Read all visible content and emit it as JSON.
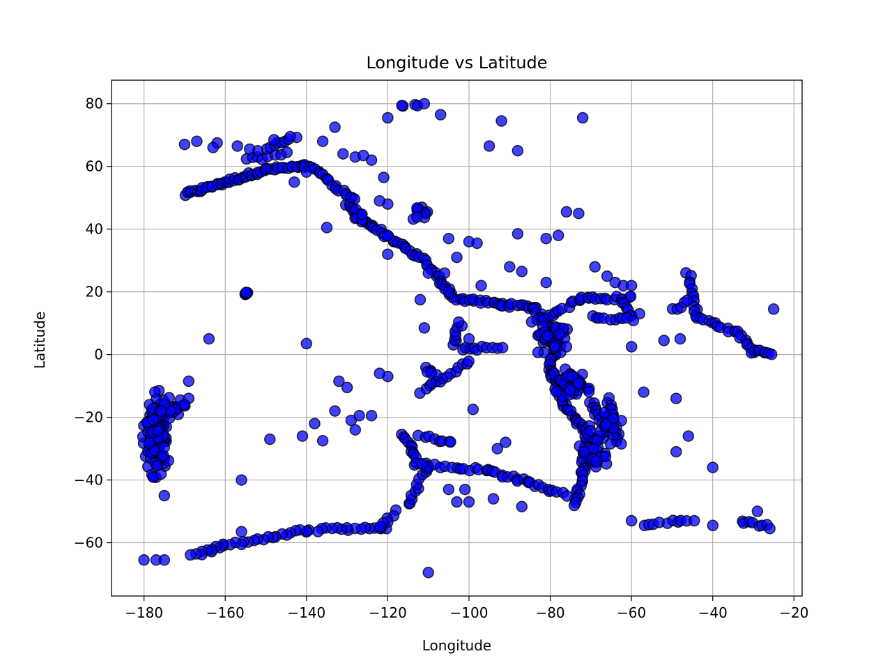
{
  "chart_data": {
    "type": "scatter",
    "title": "Longitude vs Latitude",
    "xlabel": "Longitude",
    "ylabel": "Latitude",
    "xlim": [
      -188,
      -18
    ],
    "ylim": [
      -77,
      87.5
    ],
    "xticks": [
      -180,
      -160,
      -140,
      -120,
      -100,
      -80,
      -60,
      -40,
      -20
    ],
    "yticks": [
      -60,
      -40,
      -20,
      0,
      20,
      40,
      60,
      80
    ],
    "xtick_labels": [
      "−180",
      "−160",
      "−140",
      "−120",
      "−100",
      "−80",
      "−60",
      "−40",
      "−20"
    ],
    "ytick_labels": [
      "−60",
      "−40",
      "−20",
      "0",
      "20",
      "40",
      "60",
      "80"
    ],
    "grid": true,
    "marker_color": "#0000ff",
    "marker_edge_color": "#000000",
    "marker_alpha": 0.75,
    "segments": [
      {
        "from": [
          -170,
          51
        ],
        "to": [
          -160,
          55
        ],
        "n": 18
      },
      {
        "from": [
          -160,
          55
        ],
        "to": [
          -150,
          59
        ],
        "n": 18
      },
      {
        "from": [
          -150,
          59
        ],
        "to": [
          -140,
          60
        ],
        "n": 16
      },
      {
        "from": [
          -140,
          60
        ],
        "to": [
          -136,
          58
        ],
        "n": 6
      },
      {
        "from": [
          -155,
          62
        ],
        "to": [
          -145,
          64
        ],
        "n": 8
      },
      {
        "from": [
          -150,
          66
        ],
        "to": [
          -143,
          69
        ],
        "n": 8
      },
      {
        "from": [
          -136,
          57
        ],
        "to": [
          -128,
          49
        ],
        "n": 14
      },
      {
        "from": [
          -130,
          48
        ],
        "to": [
          -124,
          41
        ],
        "n": 12
      },
      {
        "from": [
          -124,
          41
        ],
        "to": [
          -116,
          34
        ],
        "n": 14
      },
      {
        "from": [
          -116,
          34
        ],
        "to": [
          -110,
          29
        ],
        "n": 10
      },
      {
        "from": [
          -110,
          28
        ],
        "to": [
          -104,
          19
        ],
        "n": 14
      },
      {
        "from": [
          -104,
          18
        ],
        "to": [
          -92,
          16
        ],
        "n": 16
      },
      {
        "from": [
          -92,
          16
        ],
        "to": [
          -84,
          15
        ],
        "n": 12
      },
      {
        "from": [
          -84,
          15
        ],
        "to": [
          -80,
          9
        ],
        "n": 10
      },
      {
        "from": [
          -84,
          10
        ],
        "to": [
          -72,
          18
        ],
        "n": 14
      },
      {
        "from": [
          -72,
          18
        ],
        "to": [
          -60,
          18
        ],
        "n": 14
      },
      {
        "from": [
          -62,
          17
        ],
        "to": [
          -60,
          12
        ],
        "n": 6
      },
      {
        "from": [
          -78,
          8
        ],
        "to": [
          -80,
          -5
        ],
        "n": 18
      },
      {
        "from": [
          -80,
          -5
        ],
        "to": [
          -77,
          -15
        ],
        "n": 14
      },
      {
        "from": [
          -77,
          -15
        ],
        "to": [
          -71,
          -25
        ],
        "n": 16
      },
      {
        "from": [
          -71,
          -25
        ],
        "to": [
          -72,
          -38
        ],
        "n": 16
      },
      {
        "from": [
          -72,
          -38
        ],
        "to": [
          -74,
          -48
        ],
        "n": 12
      },
      {
        "from": [
          -70,
          -15
        ],
        "to": [
          -66,
          -25
        ],
        "n": 14
      },
      {
        "from": [
          -66,
          -14
        ],
        "to": [
          -63,
          -29
        ],
        "n": 14
      },
      {
        "from": [
          -76,
          -5
        ],
        "to": [
          -70,
          -12
        ],
        "n": 10
      },
      {
        "from": [
          -70,
          12
        ],
        "to": [
          -60,
          11
        ],
        "n": 10
      },
      {
        "from": [
          -120,
          -55
        ],
        "to": [
          -140,
          -56
        ],
        "n": 18
      },
      {
        "from": [
          -140,
          -56
        ],
        "to": [
          -160,
          -61
        ],
        "n": 18
      },
      {
        "from": [
          -160,
          -61
        ],
        "to": [
          -168,
          -64
        ],
        "n": 10
      },
      {
        "from": [
          -118,
          -50
        ],
        "to": [
          -122,
          -55
        ],
        "n": 6
      },
      {
        "from": [
          -115,
          -48
        ],
        "to": [
          -110,
          -35
        ],
        "n": 12
      },
      {
        "from": [
          -113,
          -35
        ],
        "to": [
          -95,
          -37
        ],
        "n": 16
      },
      {
        "from": [
          -95,
          -37
        ],
        "to": [
          -85,
          -41
        ],
        "n": 12
      },
      {
        "from": [
          -85,
          -41
        ],
        "to": [
          -76,
          -45
        ],
        "n": 10
      },
      {
        "from": [
          -116,
          -25
        ],
        "to": [
          -112,
          -35
        ],
        "n": 12
      },
      {
        "from": [
          -112,
          -12
        ],
        "to": [
          -100,
          -2
        ],
        "n": 14
      },
      {
        "from": [
          -104,
          3
        ],
        "to": [
          -102,
          10
        ],
        "n": 8
      },
      {
        "from": [
          -102,
          2
        ],
        "to": [
          -92,
          2
        ],
        "n": 10
      },
      {
        "from": [
          -112,
          -26
        ],
        "to": [
          -104,
          -28
        ],
        "n": 8
      },
      {
        "from": [
          -46,
          26
        ],
        "to": [
          -44,
          12
        ],
        "n": 12
      },
      {
        "from": [
          -44,
          12
        ],
        "to": [
          -34,
          7
        ],
        "n": 12
      },
      {
        "from": [
          -34,
          7
        ],
        "to": [
          -30,
          1
        ],
        "n": 8
      },
      {
        "from": [
          -30,
          1
        ],
        "to": [
          -25,
          0.5
        ],
        "n": 8
      },
      {
        "from": [
          -50,
          14
        ],
        "to": [
          -46,
          17
        ],
        "n": 5
      },
      {
        "from": [
          -57,
          -54
        ],
        "to": [
          -45,
          -53
        ],
        "n": 10
      },
      {
        "from": [
          -33,
          -53
        ],
        "to": [
          -26,
          -55
        ],
        "n": 8
      }
    ],
    "clusters": [
      {
        "center": [
          -177,
          -26
        ],
        "spread": [
          2.0,
          10.0
        ],
        "n": 140
      },
      {
        "center": [
          -173,
          -17
        ],
        "spread": [
          2.5,
          2.5
        ],
        "n": 24
      },
      {
        "center": [
          -80,
          5
        ],
        "spread": [
          3.5,
          3.5
        ],
        "n": 40
      },
      {
        "center": [
          -76,
          -10
        ],
        "spread": [
          3.0,
          4.0
        ],
        "n": 40
      },
      {
        "center": [
          -70,
          -30
        ],
        "spread": [
          2.5,
          6.0
        ],
        "n": 40
      },
      {
        "center": [
          -65,
          -22
        ],
        "spread": [
          2.0,
          5.0
        ],
        "n": 24
      },
      {
        "center": [
          -155,
          19.5
        ],
        "spread": [
          0.5,
          0.8
        ],
        "n": 6
      },
      {
        "center": [
          -115,
          79.5
        ],
        "spread": [
          2.0,
          0.3
        ],
        "n": 4
      },
      {
        "center": [
          -109,
          -6
        ],
        "spread": [
          2.0,
          1.5
        ],
        "n": 6
      },
      {
        "center": [
          -127,
          45
        ],
        "spread": [
          1.5,
          2.0
        ],
        "n": 8
      },
      {
        "center": [
          -112,
          45
        ],
        "spread": [
          2.0,
          2.0
        ],
        "n": 10
      }
    ],
    "points": [
      [
        -111,
        80
      ],
      [
        -107,
        76.5
      ],
      [
        -92,
        74.5
      ],
      [
        -72,
        75.5
      ],
      [
        -133,
        72.5
      ],
      [
        -136,
        68
      ],
      [
        -95,
        66.5
      ],
      [
        -88,
        65
      ],
      [
        -170,
        67
      ],
      [
        -167,
        68
      ],
      [
        -162,
        67.5
      ],
      [
        -157,
        66.5
      ],
      [
        -120,
        75.5
      ],
      [
        -121,
        56.5
      ],
      [
        -140,
        58.2
      ],
      [
        -143,
        55
      ],
      [
        -105,
        37
      ],
      [
        -100,
        36
      ],
      [
        -98,
        35.5
      ],
      [
        -90,
        28
      ],
      [
        -87,
        26.5
      ],
      [
        -81,
        37
      ],
      [
        -78,
        38
      ],
      [
        -76,
        45.5
      ],
      [
        -73,
        45
      ],
      [
        -88,
        38.5
      ],
      [
        -81,
        23
      ],
      [
        -69,
        28
      ],
      [
        -66,
        25
      ],
      [
        -62,
        22
      ],
      [
        -64,
        23
      ],
      [
        -60,
        22
      ],
      [
        -58,
        13
      ],
      [
        -60,
        2.5
      ],
      [
        -52,
        4.5
      ],
      [
        -48,
        5
      ],
      [
        -49,
        -14
      ],
      [
        -46,
        -26
      ],
      [
        -49,
        -31
      ],
      [
        -57,
        -12
      ],
      [
        -60,
        -53
      ],
      [
        -40,
        -54.5
      ],
      [
        -40,
        -36
      ],
      [
        -29,
        -50
      ],
      [
        -25,
        14.5
      ],
      [
        -164,
        5
      ],
      [
        -140,
        3.5
      ],
      [
        -132,
        -8.5
      ],
      [
        -130,
        -10.5
      ],
      [
        -133,
        -18
      ],
      [
        -129,
        -21
      ],
      [
        -127,
        -19.5
      ],
      [
        -124,
        -19.5
      ],
      [
        -128,
        -24
      ],
      [
        -138,
        -22
      ],
      [
        -141,
        -26
      ],
      [
        -136,
        -27.5
      ],
      [
        -149,
        -27
      ],
      [
        -156,
        -40
      ],
      [
        -156,
        -56.5
      ],
      [
        -120,
        -7
      ],
      [
        -122,
        -6
      ],
      [
        -110,
        -69.5
      ],
      [
        -103,
        -47
      ],
      [
        -100,
        -47
      ],
      [
        -99,
        -17.5
      ],
      [
        -94,
        -46
      ],
      [
        -93,
        -30
      ],
      [
        -91,
        -28
      ],
      [
        -87,
        -48.5
      ],
      [
        -105,
        -43
      ],
      [
        -101,
        -43
      ],
      [
        -111,
        8.5
      ],
      [
        -103,
        31
      ],
      [
        -106,
        26
      ],
      [
        -105,
        20
      ],
      [
        -110,
        26
      ],
      [
        -120,
        32
      ],
      [
        -120,
        38
      ],
      [
        -135,
        40.5
      ],
      [
        -169,
        -8.5
      ],
      [
        -175,
        -45
      ],
      [
        -177,
        -65.5
      ],
      [
        -180,
        -65.5
      ],
      [
        -175,
        -65.5
      ],
      [
        -169,
        -14
      ],
      [
        -170,
        -16
      ],
      [
        -112,
        17.5
      ],
      [
        -100,
        5
      ],
      [
        -97,
        22
      ],
      [
        -120,
        48
      ],
      [
        -122,
        49
      ],
      [
        -124,
        62
      ],
      [
        -128,
        63
      ],
      [
        -131,
        64
      ],
      [
        -126,
        63.5
      ],
      [
        -144,
        69.5
      ],
      [
        -148,
        68.5
      ],
      [
        -152,
        65
      ],
      [
        -154,
        65.5
      ],
      [
        -163,
        66
      ]
    ]
  }
}
